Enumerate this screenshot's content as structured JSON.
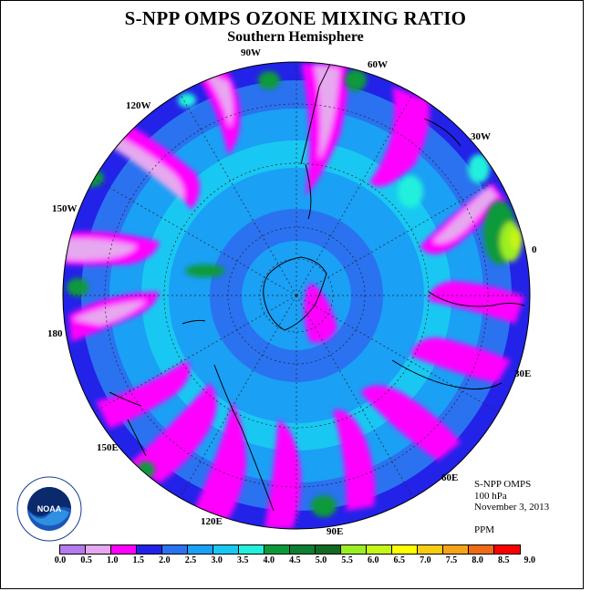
{
  "title": "S-NPP OMPS OZONE MIXING RATIO",
  "subtitle": "Southern Hemisphere",
  "lon_labels": [
    "90W",
    "60W",
    "120W",
    "30W",
    "150W",
    "0",
    "180",
    "30E",
    "150E",
    "60E",
    "120E",
    "90E"
  ],
  "info": {
    "product": "S-NPP OMPS",
    "level": "100 hPa",
    "date": "November 3, 2013",
    "units": "PPM"
  },
  "colorbar": {
    "ticks": [
      "0.0",
      "0.5",
      "1.0",
      "1.5",
      "2.0",
      "2.5",
      "3.0",
      "3.5",
      "4.0",
      "4.5",
      "5.0",
      "5.5",
      "6.0",
      "6.5",
      "7.0",
      "7.5",
      "8.0",
      "8.5",
      "9.0"
    ],
    "colors": [
      "#b57bed",
      "#e6a8ef",
      "#ff00ff",
      "#2222e8",
      "#2a72f0",
      "#1aa0f5",
      "#18c8f2",
      "#22f0dc",
      "#0a9a3a",
      "#0a8030",
      "#126a22",
      "#9bee22",
      "#c6f518",
      "#ffff00",
      "#f8cc10",
      "#f5a418",
      "#f06a18",
      "#ff0000",
      "#8a5a3a"
    ]
  },
  "logo_text": "NOAA"
}
